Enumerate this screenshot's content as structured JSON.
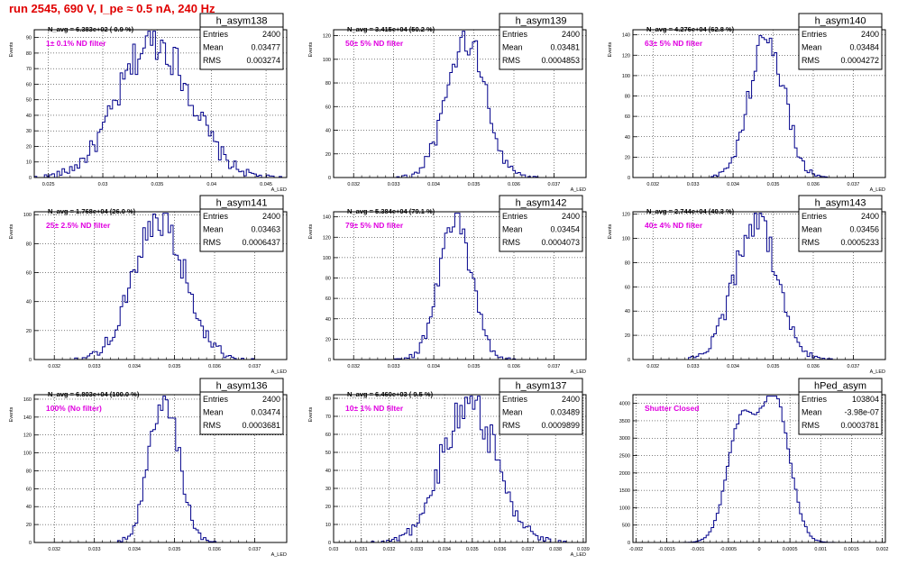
{
  "title": "run 2545,   690 V, I_pe ≈ 0.5 nA, 240 Hz",
  "colors": {
    "title": "#e00000",
    "hist": "#00008b",
    "note": "#e000e0",
    "frame": "#000000"
  },
  "chart_data": [
    {
      "type": "bar",
      "name": "h_asym138",
      "navg": "N_avg = 6.383e+02 ( 0.9 %)",
      "note": "1± 0.1% ND filter",
      "stats": {
        "entries_label": "Entries",
        "entries": "2400",
        "mean_label": "Mean",
        "mean": "0.03477",
        "rms_label": "RMS",
        "rms": "0.003274"
      },
      "ylabel": "Events",
      "xlabel": "A_LED",
      "xlim": [
        0.0237,
        0.0469
      ],
      "ylim": [
        0,
        95
      ],
      "xticks": [
        0.025,
        0.03,
        0.035,
        0.04,
        0.045
      ],
      "xtick_labels": [
        "0.025",
        "0.03",
        "0.035",
        "0.04",
        "0.045"
      ],
      "yticks": [
        0,
        10,
        20,
        30,
        40,
        50,
        60,
        70,
        80,
        90
      ],
      "ytick_labels": [
        "0",
        "10",
        "20",
        "30",
        "40",
        "50",
        "60",
        "70",
        "80",
        "90"
      ],
      "mean": 0.03477,
      "rms": 0.003274,
      "entries": 2400,
      "peak": 88,
      "grid": true
    },
    {
      "type": "bar",
      "name": "h_asym139",
      "navg": "N_avg = 3.415e+04 (50.2 %)",
      "note": "50± 5% ND filter",
      "stats": {
        "entries_label": "Entries",
        "entries": "2400",
        "mean_label": "Mean",
        "mean": "0.03481",
        "rms_label": "RMS",
        "rms": "0.0004853"
      },
      "ylabel": "Events",
      "xlabel": "A_LED",
      "xlim": [
        0.0315,
        0.0378
      ],
      "ylim": [
        0,
        125
      ],
      "xticks": [
        0.032,
        0.033,
        0.034,
        0.035,
        0.036,
        0.037
      ],
      "xtick_labels": [
        "0.032",
        "0.033",
        "0.034",
        "0.035",
        "0.036",
        "0.037"
      ],
      "yticks": [
        0,
        20,
        40,
        60,
        80,
        100,
        120
      ],
      "ytick_labels": [
        "0",
        "20",
        "40",
        "60",
        "80",
        "100",
        "120"
      ],
      "mean": 0.03481,
      "rms": 0.0004853,
      "entries": 2400,
      "peak": 118,
      "grid": true
    },
    {
      "type": "bar",
      "name": "h_asym140",
      "navg": "N_avg = 4.276e+04 (62.8 %)",
      "note": "63± 5% ND filter",
      "stats": {
        "entries_label": "Entries",
        "entries": "2400",
        "mean_label": "Mean",
        "mean": "0.03484",
        "rms_label": "RMS",
        "rms": "0.0004272"
      },
      "ylabel": "Events",
      "xlabel": "A_LED",
      "xlim": [
        0.0315,
        0.0378
      ],
      "ylim": [
        0,
        145
      ],
      "xticks": [
        0.032,
        0.033,
        0.034,
        0.035,
        0.036,
        0.037
      ],
      "xtick_labels": [
        "0.032",
        "0.033",
        "0.034",
        "0.035",
        "0.036",
        "0.037"
      ],
      "yticks": [
        0,
        20,
        40,
        60,
        80,
        100,
        120,
        140
      ],
      "ytick_labels": [
        "0",
        "20",
        "40",
        "60",
        "80",
        "100",
        "120",
        "140"
      ],
      "mean": 0.03484,
      "rms": 0.0004272,
      "entries": 2400,
      "peak": 140,
      "grid": true
    },
    {
      "type": "bar",
      "name": "h_asym141",
      "navg": "N_avg = 1.768e+04 (26.0 %)",
      "note": "25± 2.5% ND filter",
      "stats": {
        "entries_label": "Entries",
        "entries": "2400",
        "mean_label": "Mean",
        "mean": "0.03463",
        "rms_label": "RMS",
        "rms": "0.0006437"
      },
      "ylabel": "Events",
      "xlabel": "A_LED",
      "xlim": [
        0.0315,
        0.0378
      ],
      "ylim": [
        0,
        102
      ],
      "xticks": [
        0.032,
        0.033,
        0.034,
        0.035,
        0.036,
        0.037
      ],
      "xtick_labels": [
        "0.032",
        "0.033",
        "0.034",
        "0.035",
        "0.036",
        "0.037"
      ],
      "yticks": [
        0,
        20,
        40,
        60,
        80,
        100
      ],
      "ytick_labels": [
        "0",
        "20",
        "40",
        "60",
        "80",
        "100"
      ],
      "mean": 0.03463,
      "rms": 0.0006437,
      "entries": 2400,
      "peak": 95,
      "grid": true
    },
    {
      "type": "bar",
      "name": "h_asym142",
      "navg": "N_avg = 5.384e+04 (79.1 %)",
      "note": "79± 5% ND filter",
      "stats": {
        "entries_label": "Entries",
        "entries": "2400",
        "mean_label": "Mean",
        "mean": "0.03454",
        "rms_label": "RMS",
        "rms": "0.0004073"
      },
      "ylabel": "Events",
      "xlabel": "A_LED",
      "xlim": [
        0.0315,
        0.0378
      ],
      "ylim": [
        0,
        145
      ],
      "xticks": [
        0.032,
        0.033,
        0.034,
        0.035,
        0.036,
        0.037
      ],
      "xtick_labels": [
        "0.032",
        "0.033",
        "0.034",
        "0.035",
        "0.036",
        "0.037"
      ],
      "yticks": [
        0,
        20,
        40,
        60,
        80,
        100,
        120,
        140
      ],
      "ytick_labels": [
        "0",
        "20",
        "40",
        "60",
        "80",
        "100",
        "120",
        "140"
      ],
      "mean": 0.03454,
      "rms": 0.0004073,
      "entries": 2400,
      "peak": 138,
      "grid": true
    },
    {
      "type": "bar",
      "name": "h_asym143",
      "navg": "N_avg = 2.744e+04 (40.3 %)",
      "note": "40± 4% ND filter",
      "stats": {
        "entries_label": "Entries",
        "entries": "2400",
        "mean_label": "Mean",
        "mean": "0.03456",
        "rms_label": "RMS",
        "rms": "0.0005233"
      },
      "ylabel": "Events",
      "xlabel": "A_LED",
      "xlim": [
        0.0315,
        0.0378
      ],
      "ylim": [
        0,
        122
      ],
      "xticks": [
        0.032,
        0.033,
        0.034,
        0.035,
        0.036,
        0.037
      ],
      "xtick_labels": [
        "0.032",
        "0.033",
        "0.034",
        "0.035",
        "0.036",
        "0.037"
      ],
      "yticks": [
        0,
        20,
        40,
        60,
        80,
        100,
        120
      ],
      "ytick_labels": [
        "0",
        "20",
        "40",
        "60",
        "80",
        "100",
        "120"
      ],
      "mean": 0.03456,
      "rms": 0.0005233,
      "entries": 2400,
      "peak": 117,
      "grid": true
    },
    {
      "type": "bar",
      "name": "h_asym136",
      "navg": "N_avg = 6.803e+04 (100.0 %)",
      "note": "100% (No filter)",
      "stats": {
        "entries_label": "Entries",
        "entries": "2400",
        "mean_label": "Mean",
        "mean": "0.03474",
        "rms_label": "RMS",
        "rms": "0.0003681"
      },
      "ylabel": "Events",
      "xlabel": "A_LED",
      "xlim": [
        0.0315,
        0.0378
      ],
      "ylim": [
        0,
        165
      ],
      "xticks": [
        0.032,
        0.033,
        0.034,
        0.035,
        0.036,
        0.037
      ],
      "xtick_labels": [
        "0.032",
        "0.033",
        "0.034",
        "0.035",
        "0.036",
        "0.037"
      ],
      "yticks": [
        0,
        20,
        40,
        60,
        80,
        100,
        120,
        140,
        160
      ],
      "ytick_labels": [
        "0",
        "20",
        "40",
        "60",
        "80",
        "100",
        "120",
        "140",
        "160"
      ],
      "mean": 0.03474,
      "rms": 0.0003681,
      "entries": 2400,
      "peak": 160,
      "grid": true
    },
    {
      "type": "bar",
      "name": "h_asym137",
      "navg": "N_avg = 6.460e+03 ( 9.5 %)",
      "note": "10± 1% ND filter",
      "stats": {
        "entries_label": "Entries",
        "entries": "2400",
        "mean_label": "Mean",
        "mean": "0.03489",
        "rms_label": "RMS",
        "rms": "0.0009899"
      },
      "ylabel": "Events",
      "xlabel": "A_LED",
      "xlim": [
        0.03,
        0.0391
      ],
      "ylim": [
        0,
        82
      ],
      "xticks": [
        0.03,
        0.031,
        0.032,
        0.033,
        0.034,
        0.035,
        0.036,
        0.037,
        0.038,
        0.039
      ],
      "xtick_labels": [
        "0.03",
        "0.031",
        "0.032",
        "0.033",
        "0.034",
        "0.035",
        "0.036",
        "0.037",
        "0.038",
        "0.039"
      ],
      "yticks": [
        0,
        10,
        20,
        30,
        40,
        50,
        60,
        70,
        80
      ],
      "ytick_labels": [
        "0",
        "10",
        "20",
        "30",
        "40",
        "50",
        "60",
        "70",
        "80"
      ],
      "mean": 0.03489,
      "rms": 0.0009899,
      "entries": 2400,
      "peak": 78,
      "grid": true
    },
    {
      "type": "bar",
      "name": "hPed_asym",
      "navg": "",
      "note": "Shutter Closed",
      "stats": {
        "entries_label": "Entries",
        "entries": "103804",
        "mean_label": "Mean",
        "mean": "-3.98e-07",
        "rms_label": "RMS",
        "rms": "0.0003781"
      },
      "ylabel": "",
      "xlabel": "",
      "xlim": [
        -0.00205,
        0.00205
      ],
      "ylim": [
        0,
        4250
      ],
      "xticks": [
        -0.002,
        -0.0015,
        -0.001,
        -0.0005,
        0,
        0.0005,
        0.001,
        0.0015,
        0.002
      ],
      "xtick_labels": [
        "-0.002",
        "-0.0015",
        "-0.001",
        "-0.0005",
        "0",
        "0.0005",
        "0.001",
        "0.0015",
        "0.002"
      ],
      "yticks": [
        0,
        500,
        1000,
        1500,
        2000,
        2500,
        3000,
        3500,
        4000
      ],
      "ytick_labels": [
        "0",
        "500",
        "1000",
        "1500",
        "2000",
        "2500",
        "3000",
        "3500",
        "4000"
      ],
      "mean": -3.98e-07,
      "rms": 0.0003781,
      "entries": 103804,
      "peak": 4020,
      "bimodal": true,
      "grid": true
    }
  ]
}
